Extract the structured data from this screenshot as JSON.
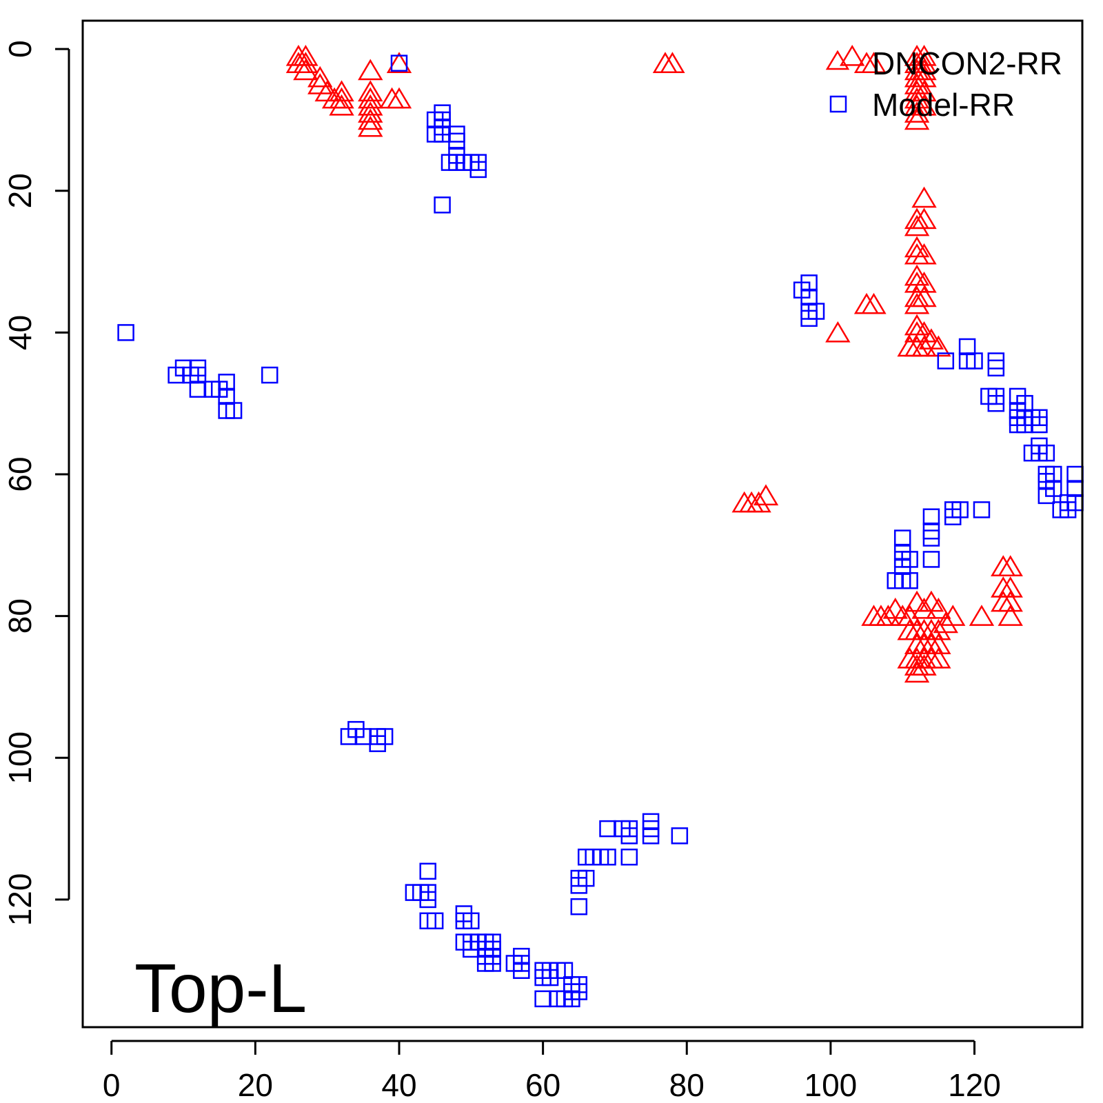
{
  "chart_data": {
    "type": "scatter",
    "title": "",
    "xlabel": "",
    "ylabel": "",
    "xlim": [
      -4,
      135
    ],
    "ylim": [
      138,
      -4
    ],
    "y_reversed": true,
    "grid": false,
    "x_ticks": [
      0,
      20,
      40,
      60,
      80,
      100,
      120
    ],
    "y_ticks": [
      0,
      20,
      40,
      60,
      80,
      100,
      120
    ],
    "panel_label": "Top-L",
    "legend": {
      "placement": "top-right"
    },
    "series": [
      {
        "name": "DNCON2-RR",
        "marker": "triangle",
        "color": "#ff0000",
        "points": [
          [
            26,
            1
          ],
          [
            27,
            1
          ],
          [
            26,
            2
          ],
          [
            27,
            2
          ],
          [
            27,
            3
          ],
          [
            29,
            4
          ],
          [
            29,
            5
          ],
          [
            30,
            6
          ],
          [
            31,
            7
          ],
          [
            32,
            6
          ],
          [
            32,
            7
          ],
          [
            32,
            8
          ],
          [
            36,
            3
          ],
          [
            36,
            6
          ],
          [
            36,
            7
          ],
          [
            36,
            8
          ],
          [
            36,
            9
          ],
          [
            36,
            10
          ],
          [
            36,
            11
          ],
          [
            39,
            7
          ],
          [
            40,
            7
          ],
          [
            40,
            2
          ],
          [
            77,
            2
          ],
          [
            78,
            2
          ],
          [
            103,
            1
          ],
          [
            105,
            2
          ],
          [
            106,
            2
          ],
          [
            112,
            1
          ],
          [
            113,
            1
          ],
          [
            112,
            2
          ],
          [
            113,
            2
          ],
          [
            112,
            3
          ],
          [
            113,
            3
          ],
          [
            112,
            4
          ],
          [
            113,
            4
          ],
          [
            112,
            5
          ],
          [
            112,
            6
          ],
          [
            113,
            6
          ],
          [
            112,
            7
          ],
          [
            112,
            8
          ],
          [
            113,
            8
          ],
          [
            112,
            9
          ],
          [
            112,
            10
          ],
          [
            113,
            21
          ],
          [
            112,
            24
          ],
          [
            113,
            24
          ],
          [
            112,
            25
          ],
          [
            112,
            28
          ],
          [
            112,
            29
          ],
          [
            113,
            29
          ],
          [
            112,
            32
          ],
          [
            112,
            33
          ],
          [
            113,
            33
          ],
          [
            112,
            35
          ],
          [
            113,
            35
          ],
          [
            112,
            36
          ],
          [
            112,
            39
          ],
          [
            112,
            40
          ],
          [
            113,
            40
          ],
          [
            111,
            42
          ],
          [
            112,
            42
          ],
          [
            113,
            42
          ],
          [
            114,
            41
          ],
          [
            115,
            42
          ],
          [
            105,
            36
          ],
          [
            106,
            36
          ],
          [
            101,
            40
          ],
          [
            88,
            64
          ],
          [
            89,
            64
          ],
          [
            90,
            64
          ],
          [
            91,
            63
          ],
          [
            106,
            80
          ],
          [
            107,
            80
          ],
          [
            108,
            80
          ],
          [
            109,
            79
          ],
          [
            110,
            80
          ],
          [
            111,
            80
          ],
          [
            112,
            78
          ],
          [
            113,
            79
          ],
          [
            114,
            78
          ],
          [
            115,
            79
          ],
          [
            116,
            81
          ],
          [
            117,
            80
          ],
          [
            121,
            80
          ],
          [
            111,
            82
          ],
          [
            112,
            82
          ],
          [
            113,
            82
          ],
          [
            114,
            82
          ],
          [
            115,
            82
          ],
          [
            112,
            84
          ],
          [
            113,
            84
          ],
          [
            114,
            84
          ],
          [
            115,
            84
          ],
          [
            111,
            86
          ],
          [
            112,
            86
          ],
          [
            113,
            86
          ],
          [
            114,
            86
          ],
          [
            115,
            86
          ],
          [
            112,
            87
          ],
          [
            113,
            87
          ],
          [
            112,
            88
          ],
          [
            124,
            73
          ],
          [
            125,
            73
          ],
          [
            124,
            76
          ],
          [
            125,
            76
          ],
          [
            124,
            78
          ],
          [
            125,
            78
          ],
          [
            125,
            80
          ]
        ]
      },
      {
        "name": "Model-RR",
        "marker": "square",
        "color": "#0000ff",
        "points": [
          [
            40,
            2
          ],
          [
            45,
            10
          ],
          [
            46,
            9
          ],
          [
            46,
            10
          ],
          [
            45,
            12
          ],
          [
            46,
            12
          ],
          [
            46,
            11
          ],
          [
            48,
            12
          ],
          [
            48,
            13
          ],
          [
            48,
            15
          ],
          [
            48,
            16
          ],
          [
            47,
            16
          ],
          [
            49,
            16
          ],
          [
            50,
            16
          ],
          [
            51,
            16
          ],
          [
            51,
            17
          ],
          [
            46,
            22
          ],
          [
            2,
            40
          ],
          [
            9,
            46
          ],
          [
            10,
            45
          ],
          [
            11,
            46
          ],
          [
            12,
            45
          ],
          [
            12,
            46
          ],
          [
            12,
            48
          ],
          [
            14,
            48
          ],
          [
            15,
            48
          ],
          [
            16,
            47
          ],
          [
            16,
            49
          ],
          [
            16,
            51
          ],
          [
            17,
            51
          ],
          [
            22,
            46
          ],
          [
            97,
            33
          ],
          [
            96,
            34
          ],
          [
            97,
            35
          ],
          [
            97,
            37
          ],
          [
            98,
            37
          ],
          [
            97,
            38
          ],
          [
            116,
            44
          ],
          [
            119,
            42
          ],
          [
            119,
            44
          ],
          [
            120,
            44
          ],
          [
            123,
            44
          ],
          [
            123,
            45
          ],
          [
            122,
            49
          ],
          [
            123,
            49
          ],
          [
            123,
            50
          ],
          [
            126,
            49
          ],
          [
            126,
            51
          ],
          [
            126,
            52
          ],
          [
            126,
            53
          ],
          [
            127,
            50
          ],
          [
            127,
            52
          ],
          [
            127,
            53
          ],
          [
            128,
            52
          ],
          [
            129,
            52
          ],
          [
            129,
            53
          ],
          [
            129,
            56
          ],
          [
            128,
            57
          ],
          [
            129,
            57
          ],
          [
            130,
            57
          ],
          [
            130,
            60
          ],
          [
            130,
            61
          ],
          [
            131,
            60
          ],
          [
            131,
            62
          ],
          [
            130,
            63
          ],
          [
            134,
            60
          ],
          [
            134,
            62
          ],
          [
            134,
            64
          ],
          [
            133,
            64
          ],
          [
            132,
            65
          ],
          [
            133,
            65
          ],
          [
            117,
            65
          ],
          [
            118,
            65
          ],
          [
            117,
            66
          ],
          [
            121,
            65
          ],
          [
            114,
            66
          ],
          [
            114,
            68
          ],
          [
            114,
            69
          ],
          [
            114,
            72
          ],
          [
            110,
            69
          ],
          [
            110,
            71
          ],
          [
            110,
            72
          ],
          [
            110,
            73
          ],
          [
            111,
            72
          ],
          [
            109,
            75
          ],
          [
            110,
            75
          ],
          [
            111,
            75
          ],
          [
            33,
            97
          ],
          [
            34,
            96
          ],
          [
            35,
            97
          ],
          [
            37,
            97
          ],
          [
            38,
            97
          ],
          [
            37,
            98
          ],
          [
            44,
            116
          ],
          [
            42,
            119
          ],
          [
            43,
            119
          ],
          [
            44,
            119
          ],
          [
            44,
            120
          ],
          [
            44,
            123
          ],
          [
            45,
            123
          ],
          [
            49,
            122
          ],
          [
            49,
            123
          ],
          [
            50,
            123
          ],
          [
            49,
            126
          ],
          [
            50,
            126
          ],
          [
            51,
            126
          ],
          [
            50,
            127
          ],
          [
            52,
            126
          ],
          [
            53,
            126
          ],
          [
            52,
            127
          ],
          [
            53,
            127
          ],
          [
            52,
            128
          ],
          [
            53,
            128
          ],
          [
            52,
            129
          ],
          [
            53,
            129
          ],
          [
            56,
            129
          ],
          [
            57,
            128
          ],
          [
            57,
            129
          ],
          [
            57,
            130
          ],
          [
            60,
            130
          ],
          [
            61,
            130
          ],
          [
            62,
            130
          ],
          [
            60,
            131
          ],
          [
            61,
            131
          ],
          [
            63,
            130
          ],
          [
            60,
            134
          ],
          [
            62,
            134
          ],
          [
            63,
            134
          ],
          [
            64,
            134
          ],
          [
            64,
            132
          ],
          [
            65,
            132
          ],
          [
            64,
            133
          ],
          [
            65,
            133
          ],
          [
            65,
            117
          ],
          [
            66,
            117
          ],
          [
            65,
            118
          ],
          [
            65,
            121
          ],
          [
            66,
            114
          ],
          [
            67,
            114
          ],
          [
            68,
            114
          ],
          [
            69,
            114
          ],
          [
            69,
            110
          ],
          [
            71,
            110
          ],
          [
            72,
            110
          ],
          [
            72,
            111
          ],
          [
            72,
            114
          ],
          [
            75,
            109
          ],
          [
            75,
            110
          ],
          [
            75,
            111
          ],
          [
            79,
            111
          ]
        ]
      }
    ]
  }
}
